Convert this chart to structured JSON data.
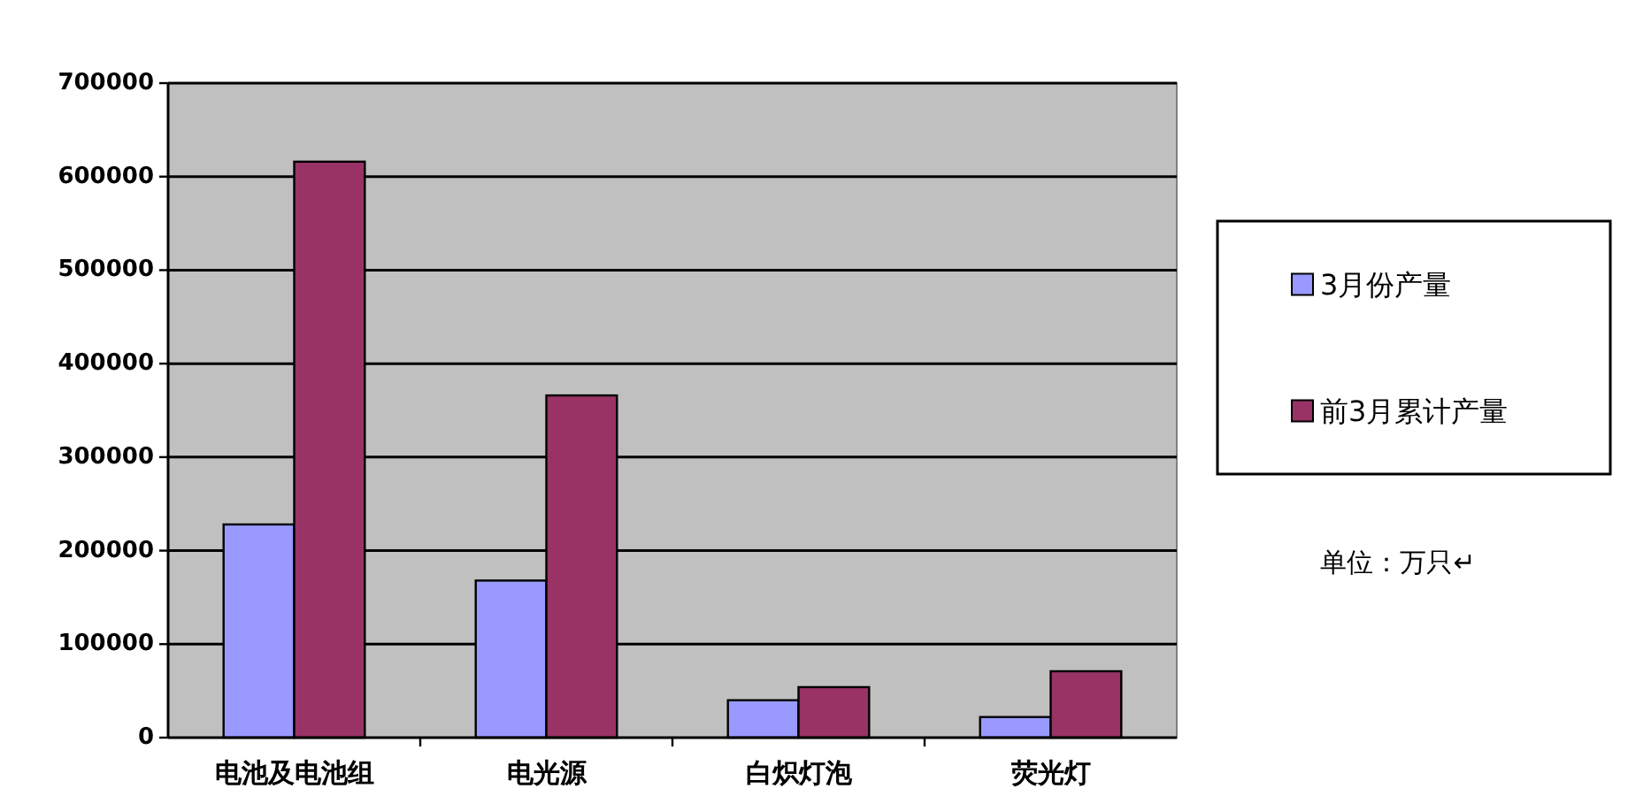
{
  "chart_data": {
    "type": "bar",
    "categories": [
      "电池及电池组",
      "电光源",
      "白炽灯泡",
      "荧光灯"
    ],
    "series": [
      {
        "name": "3月份产量",
        "color": "#9999ff",
        "values": [
          228000,
          168000,
          40000,
          22000
        ]
      },
      {
        "name": "前3月累计产量",
        "color": "#993366",
        "values": [
          616000,
          366000,
          54000,
          71000
        ]
      }
    ],
    "ylim": [
      0,
      700000
    ],
    "yticks": [
      0,
      100000,
      200000,
      300000,
      400000,
      500000,
      600000,
      700000
    ],
    "grid": "y",
    "legend": "right",
    "annotations": [
      "单位：万只↵"
    ]
  }
}
